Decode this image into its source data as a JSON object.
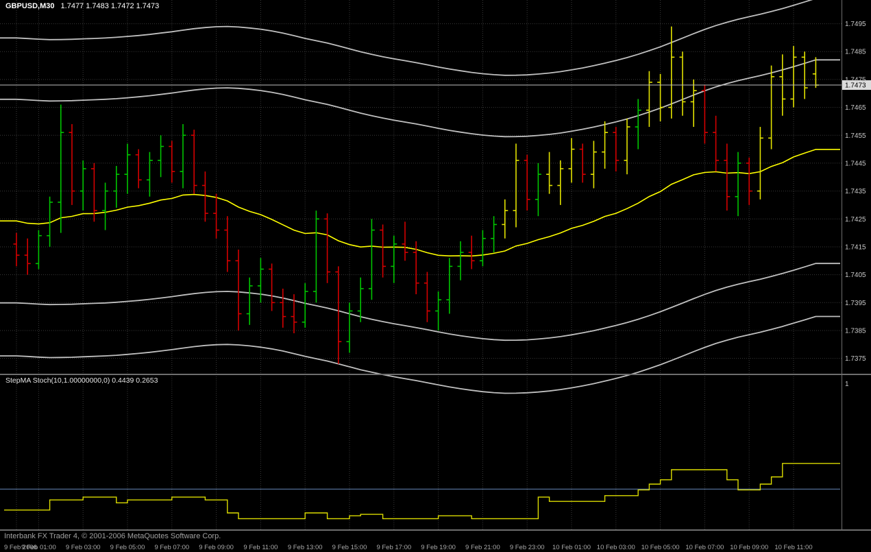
{
  "app": {
    "chart_title": {
      "symbol": "GBPUSD,M30",
      "ohlc": "1.7477 1.7483 1.7472 1.7473"
    },
    "status_bar": {
      "text": "Interbank FX Trader 4, © 2001-2006 MetaQuotes Software Corp."
    }
  },
  "price_axis": {
    "ticks": [
      "1.7495",
      "1.7485",
      "1.7475",
      "1.7465",
      "1.7455",
      "1.7445",
      "1.7435",
      "1.7425",
      "1.7415",
      "1.7405",
      "1.7395",
      "1.7385",
      "1.7375"
    ],
    "current": "1.7473"
  },
  "time_axis": {
    "labels": [
      "9 Feb 2006",
      "9 Feb 01:00",
      "9 Feb 03:00",
      "9 Feb 05:00",
      "9 Feb 07:00",
      "9 Feb 09:00",
      "9 Feb 11:00",
      "9 Feb 13:00",
      "9 Feb 15:00",
      "9 Feb 17:00",
      "9 Feb 19:00",
      "9 Feb 21:00",
      "9 Feb 23:00",
      "10 Feb 01:00",
      "10 Feb 03:00",
      "10 Feb 05:00",
      "10 Feb 07:00",
      "10 Feb 09:00",
      "10 Feb 11:00"
    ]
  },
  "indicator_panel": {
    "label": "StepMA Stoch(10,1.00000000,0) 0.4439 0.2653",
    "scale_top_label": "1",
    "values_text": [
      "0.4439",
      "0.2653"
    ]
  },
  "colors": {
    "background": "#000000",
    "grid": "#3A3A3A",
    "bar_up": "#00C400",
    "bar_down": "#D40000",
    "bar_highlight": "#E2E200",
    "ma_line": "#FFFF00",
    "band_line": "#C0C0C0",
    "axis_text": "#C8C8C8",
    "time_text": "#A8A8A8",
    "current_price_line": "#C0C0C0",
    "price_badge_bg": "#DCDCDC",
    "price_badge_text": "#000000",
    "indicator_line": "#DCDC00",
    "level_line": "#6688BB",
    "separator": "#6E6E6E",
    "status_text": "#A0A0A0"
  },
  "chart_data": [
    {
      "type": "ohlc-bar",
      "title": "GBPUSD,M30",
      "symbol": "GBPUSD",
      "timeframe": "M30",
      "last_bar_ohlc": {
        "open": 1.7477,
        "high": 1.7483,
        "low": 1.7472,
        "close": 1.7473
      },
      "ylim": [
        1.73695,
        1.75035
      ],
      "y_tick_step": 0.001,
      "bar_color_map": {
        "g": "bar_up",
        "r": "bar_down",
        "y": "bar_highlight"
      },
      "bars": [
        [
          "9 Feb 00:00",
          1.7416,
          1.742,
          1.7408,
          1.7412,
          "r"
        ],
        [
          "9 Feb 00:30",
          1.7412,
          1.7418,
          1.7405,
          1.7409,
          "r"
        ],
        [
          "9 Feb 01:00",
          1.7409,
          1.7421,
          1.7407,
          1.7419,
          "g"
        ],
        [
          "9 Feb 01:30",
          1.7419,
          1.7433,
          1.7415,
          1.7431,
          "g"
        ],
        [
          "9 Feb 02:00",
          1.7431,
          1.7466,
          1.742,
          1.7456,
          "g"
        ],
        [
          "9 Feb 02:30",
          1.7456,
          1.7459,
          1.743,
          1.7435,
          "r"
        ],
        [
          "9 Feb 03:00",
          1.7435,
          1.7446,
          1.7428,
          1.7443,
          "g"
        ],
        [
          "9 Feb 03:30",
          1.7443,
          1.7445,
          1.7424,
          1.7428,
          "r"
        ],
        [
          "9 Feb 04:00",
          1.7428,
          1.7438,
          1.7421,
          1.7435,
          "g"
        ],
        [
          "9 Feb 04:30",
          1.7435,
          1.7444,
          1.7429,
          1.7441,
          "g"
        ],
        [
          "9 Feb 05:00",
          1.7441,
          1.7452,
          1.7434,
          1.7448,
          "g"
        ],
        [
          "9 Feb 05:30",
          1.7448,
          1.745,
          1.7436,
          1.7439,
          "r"
        ],
        [
          "9 Feb 06:00",
          1.7439,
          1.7449,
          1.7433,
          1.7446,
          "g"
        ],
        [
          "9 Feb 06:30",
          1.7446,
          1.7455,
          1.744,
          1.7451,
          "g"
        ],
        [
          "9 Feb 07:00",
          1.7451,
          1.7453,
          1.7438,
          1.7442,
          "r"
        ],
        [
          "9 Feb 07:30",
          1.7442,
          1.7459,
          1.7436,
          1.7455,
          "g"
        ],
        [
          "9 Feb 08:00",
          1.7455,
          1.7457,
          1.7434,
          1.7437,
          "r"
        ],
        [
          "9 Feb 08:30",
          1.7437,
          1.7442,
          1.7424,
          1.7427,
          "r"
        ],
        [
          "9 Feb 09:00",
          1.7427,
          1.7434,
          1.7418,
          1.7421,
          "r"
        ],
        [
          "9 Feb 09:30",
          1.7421,
          1.7426,
          1.7406,
          1.741,
          "r"
        ],
        [
          "9 Feb 10:00",
          1.741,
          1.7414,
          1.7385,
          1.7391,
          "r"
        ],
        [
          "9 Feb 10:30",
          1.7391,
          1.7404,
          1.7387,
          1.7401,
          "g"
        ],
        [
          "9 Feb 11:00",
          1.7401,
          1.7411,
          1.7395,
          1.7407,
          "g"
        ],
        [
          "9 Feb 11:30",
          1.7407,
          1.7409,
          1.7392,
          1.7395,
          "r"
        ],
        [
          "9 Feb 12:00",
          1.7395,
          1.74,
          1.7386,
          1.739,
          "r"
        ],
        [
          "9 Feb 12:30",
          1.739,
          1.7398,
          1.7384,
          1.7388,
          "r"
        ],
        [
          "9 Feb 13:00",
          1.7388,
          1.7402,
          1.7386,
          1.7399,
          "g"
        ],
        [
          "9 Feb 13:30",
          1.7399,
          1.7428,
          1.7395,
          1.7425,
          "g"
        ],
        [
          "9 Feb 14:00",
          1.7425,
          1.7427,
          1.7402,
          1.7406,
          "r"
        ],
        [
          "9 Feb 14:30",
          1.7406,
          1.7408,
          1.7373,
          1.7381,
          "r"
        ],
        [
          "9 Feb 15:00",
          1.7381,
          1.7395,
          1.7377,
          1.7392,
          "g"
        ],
        [
          "9 Feb 15:30",
          1.7392,
          1.7404,
          1.7388,
          1.74,
          "g"
        ],
        [
          "9 Feb 16:00",
          1.74,
          1.7425,
          1.7396,
          1.7421,
          "g"
        ],
        [
          "9 Feb 16:30",
          1.7421,
          1.7423,
          1.7404,
          1.7408,
          "r"
        ],
        [
          "9 Feb 17:00",
          1.7408,
          1.7419,
          1.7402,
          1.7416,
          "g"
        ],
        [
          "9 Feb 17:30",
          1.7416,
          1.7424,
          1.741,
          1.7413,
          "r"
        ],
        [
          "9 Feb 18:00",
          1.7413,
          1.7417,
          1.7398,
          1.7402,
          "r"
        ],
        [
          "9 Feb 18:30",
          1.7402,
          1.7406,
          1.7388,
          1.7392,
          "r"
        ],
        [
          "9 Feb 19:00",
          1.7392,
          1.7399,
          1.7385,
          1.7396,
          "g"
        ],
        [
          "9 Feb 19:30",
          1.7396,
          1.7411,
          1.7391,
          1.7408,
          "g"
        ],
        [
          "9 Feb 20:00",
          1.7408,
          1.7417,
          1.7403,
          1.7413,
          "g"
        ],
        [
          "9 Feb 20:30",
          1.7413,
          1.7419,
          1.7407,
          1.741,
          "r"
        ],
        [
          "9 Feb 21:00",
          1.741,
          1.7421,
          1.7408,
          1.7418,
          "g"
        ],
        [
          "9 Feb 21:30",
          1.7418,
          1.7426,
          1.7413,
          1.7423,
          "g"
        ],
        [
          "9 Feb 22:00",
          1.7423,
          1.7432,
          1.7418,
          1.7428,
          "y"
        ],
        [
          "9 Feb 22:30",
          1.7428,
          1.7452,
          1.7422,
          1.7446,
          "y"
        ],
        [
          "9 Feb 23:00",
          1.7446,
          1.7448,
          1.7428,
          1.7432,
          "r"
        ],
        [
          "9 Feb 23:30",
          1.7432,
          1.7445,
          1.7426,
          1.7441,
          "g"
        ],
        [
          "10 Feb 00:00",
          1.7441,
          1.7449,
          1.7434,
          1.7437,
          "y"
        ],
        [
          "10 Feb 00:30",
          1.7437,
          1.7446,
          1.743,
          1.7443,
          "y"
        ],
        [
          "10 Feb 01:00",
          1.7443,
          1.7454,
          1.7438,
          1.745,
          "y"
        ],
        [
          "10 Feb 01:30",
          1.745,
          1.7452,
          1.7438,
          1.7441,
          "r"
        ],
        [
          "10 Feb 02:00",
          1.7441,
          1.7453,
          1.7436,
          1.7449,
          "y"
        ],
        [
          "10 Feb 02:30",
          1.7449,
          1.746,
          1.7443,
          1.7456,
          "y"
        ],
        [
          "10 Feb 03:00",
          1.7456,
          1.7458,
          1.7442,
          1.7446,
          "r"
        ],
        [
          "10 Feb 03:30",
          1.7446,
          1.7461,
          1.7441,
          1.7458,
          "y"
        ],
        [
          "10 Feb 04:00",
          1.7458,
          1.7468,
          1.745,
          1.7464,
          "g"
        ],
        [
          "10 Feb 04:30",
          1.7464,
          1.7478,
          1.7458,
          1.7474,
          "y"
        ],
        [
          "10 Feb 05:00",
          1.7474,
          1.7477,
          1.746,
          1.7465,
          "y"
        ],
        [
          "10 Feb 05:30",
          1.7465,
          1.7494,
          1.7461,
          1.7483,
          "y"
        ],
        [
          "10 Feb 06:00",
          1.7483,
          1.7485,
          1.7462,
          1.7467,
          "y"
        ],
        [
          "10 Feb 06:30",
          1.7467,
          1.7475,
          1.7458,
          1.7471,
          "y"
        ],
        [
          "10 Feb 07:00",
          1.7471,
          1.7473,
          1.7452,
          1.7456,
          "r"
        ],
        [
          "10 Feb 07:30",
          1.7456,
          1.7462,
          1.7442,
          1.7446,
          "r"
        ],
        [
          "10 Feb 08:00",
          1.7446,
          1.7452,
          1.7428,
          1.7433,
          "r"
        ],
        [
          "10 Feb 08:30",
          1.7433,
          1.7449,
          1.7426,
          1.7445,
          "g"
        ],
        [
          "10 Feb 09:00",
          1.7445,
          1.7447,
          1.743,
          1.7435,
          "r"
        ],
        [
          "10 Feb 09:30",
          1.7435,
          1.7458,
          1.7432,
          1.7454,
          "y"
        ],
        [
          "10 Feb 10:00",
          1.7454,
          1.748,
          1.745,
          1.7476,
          "y"
        ],
        [
          "10 Feb 10:30",
          1.7476,
          1.7484,
          1.7462,
          1.7468,
          "y"
        ],
        [
          "10 Feb 11:00",
          1.7468,
          1.7487,
          1.7465,
          1.7483,
          "y"
        ],
        [
          "10 Feb 11:30",
          1.7483,
          1.7485,
          1.7468,
          1.7472,
          "y"
        ],
        [
          "10 Feb 12:00",
          1.7477,
          1.7483,
          1.7472,
          1.7473,
          "y"
        ]
      ],
      "overlays": {
        "ma": {
          "name": "StepMA",
          "style": "ema",
          "alpha": 0.055,
          "seed": 1.7425,
          "color_key": "ma_line"
        },
        "bands": {
          "name": "volatility-channel",
          "style": "double-ema-offset",
          "alpha": 0.08,
          "seed": 1.7428,
          "offsets": [
            0.0062,
            0.004,
            -0.0033,
            -0.0052
          ],
          "color_key": "band_line"
        }
      }
    },
    {
      "type": "line",
      "title": "StepMA Stoch(10,1.00000000,0)",
      "style": "step",
      "ylim": [
        0,
        1
      ],
      "level_line": 0.2653,
      "last_values": [
        0.4439,
        0.2653
      ],
      "values": [
        0.12,
        0.12,
        0.12,
        0.19,
        0.19,
        0.19,
        0.21,
        0.21,
        0.21,
        0.17,
        0.19,
        0.19,
        0.19,
        0.19,
        0.21,
        0.21,
        0.21,
        0.19,
        0.19,
        0.1,
        0.06,
        0.06,
        0.06,
        0.06,
        0.06,
        0.06,
        0.1,
        0.1,
        0.06,
        0.06,
        0.08,
        0.09,
        0.09,
        0.06,
        0.06,
        0.06,
        0.06,
        0.06,
        0.08,
        0.08,
        0.08,
        0.06,
        0.06,
        0.06,
        0.06,
        0.06,
        0.06,
        0.21,
        0.18,
        0.18,
        0.18,
        0.18,
        0.18,
        0.22,
        0.22,
        0.22,
        0.26,
        0.3,
        0.33,
        0.4,
        0.4,
        0.4,
        0.4,
        0.4,
        0.33,
        0.26,
        0.26,
        0.3,
        0.35,
        0.4439,
        0.4439,
        0.4439,
        0.4439
      ]
    }
  ]
}
